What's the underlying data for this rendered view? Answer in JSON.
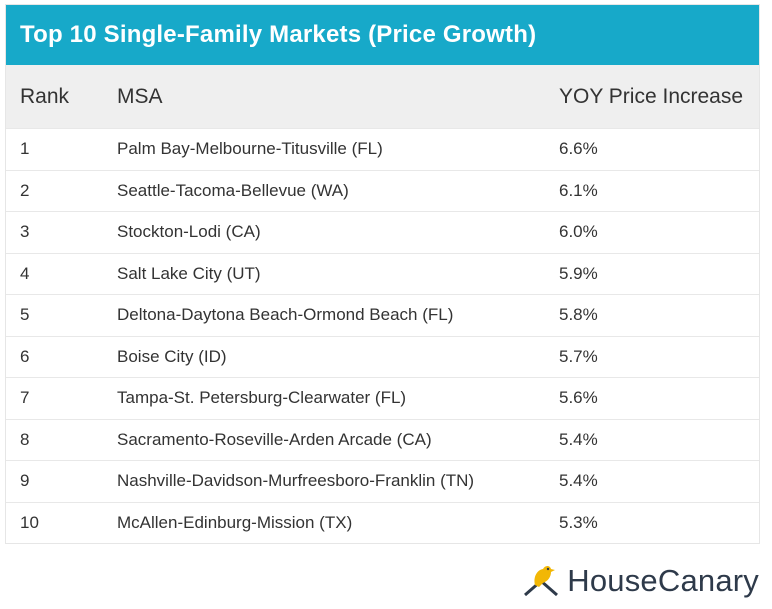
{
  "title": "Top 10 Single-Family Markets (Price Growth)",
  "columns": [
    "Rank",
    "MSA",
    "YOY Price Increase"
  ],
  "chart_data": {
    "type": "table",
    "title": "Top 10 Single-Family Markets (Price Growth)",
    "columns": [
      "Rank",
      "MSA",
      "YOY Price Increase"
    ],
    "rows": [
      {
        "rank": "1",
        "msa": "Palm Bay-Melbourne-Titusville (FL)",
        "yoy": "6.6%"
      },
      {
        "rank": "2",
        "msa": "Seattle-Tacoma-Bellevue (WA)",
        "yoy": "6.1%"
      },
      {
        "rank": "3",
        "msa": "Stockton-Lodi (CA)",
        "yoy": "6.0%"
      },
      {
        "rank": "4",
        "msa": "Salt Lake City (UT)",
        "yoy": "5.9%"
      },
      {
        "rank": "5",
        "msa": "Deltona-Daytona Beach-Ormond Beach (FL)",
        "yoy": "5.8%"
      },
      {
        "rank": "6",
        "msa": "Boise City (ID)",
        "yoy": "5.7%"
      },
      {
        "rank": "7",
        "msa": "Tampa-St. Petersburg-Clearwater (FL)",
        "yoy": "5.6%"
      },
      {
        "rank": "8",
        "msa": "Sacramento-Roseville-Arden Arcade (CA)",
        "yoy": "5.4%"
      },
      {
        "rank": "9",
        "msa": "Nashville-Davidson-Murfreesboro-Franklin (TN)",
        "yoy": "5.4%"
      },
      {
        "rank": "10",
        "msa": "McAllen-Edinburg-Mission (TX)",
        "yoy": "5.3%"
      }
    ]
  },
  "logo": {
    "text": "HouseCanary",
    "icon": "canary-house-icon"
  },
  "colors": {
    "title_bar": "#17a9c9",
    "header_bg": "#efefef",
    "logo_bird": "#f2b705",
    "logo_text": "#2e3a4a"
  }
}
